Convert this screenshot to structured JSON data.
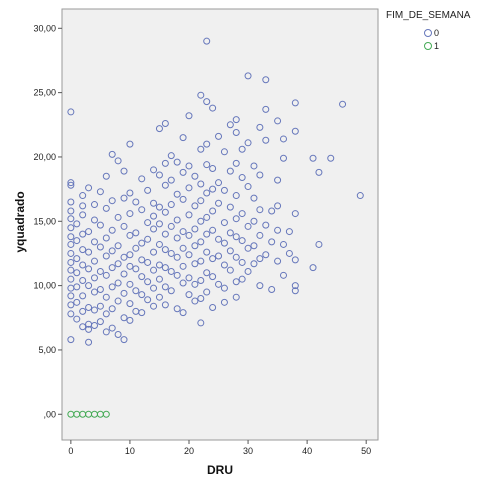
{
  "chart_data": {
    "type": "scatter",
    "xlabel": "DRU",
    "ylabel": "yquadrado",
    "xlim": [
      -1.5,
      52
    ],
    "ylim": [
      -2,
      31.5
    ],
    "xticks": [
      {
        "v": 0,
        "label": "0"
      },
      {
        "v": 10,
        "label": "10"
      },
      {
        "v": 20,
        "label": "20"
      },
      {
        "v": 30,
        "label": "30"
      },
      {
        "v": 40,
        "label": "40"
      },
      {
        "v": 50,
        "label": "50"
      }
    ],
    "yticks": [
      {
        "v": 0,
        "label": ",00"
      },
      {
        "v": 5,
        "label": "5,00"
      },
      {
        "v": 10,
        "label": "10,00"
      },
      {
        "v": 15,
        "label": "15,00"
      },
      {
        "v": 20,
        "label": "20,00"
      },
      {
        "v": 25,
        "label": "25,00"
      },
      {
        "v": 30,
        "label": "30,00"
      }
    ],
    "grid": false,
    "legend": {
      "title": "FIM_DE_SEMANA",
      "position": "top-right"
    },
    "series": [
      {
        "name": "0",
        "color": "#6677bb",
        "points": [
          [
            0,
            23.5
          ],
          [
            0,
            18
          ],
          [
            0,
            17.8
          ],
          [
            0,
            16.5
          ],
          [
            0,
            15.8
          ],
          [
            0,
            15.2
          ],
          [
            0,
            14.5
          ],
          [
            0,
            13.8
          ],
          [
            0,
            13.2
          ],
          [
            0,
            12.5
          ],
          [
            0,
            11.8
          ],
          [
            0,
            11.2
          ],
          [
            0,
            10.5
          ],
          [
            0,
            9.8
          ],
          [
            0,
            9.2
          ],
          [
            0,
            8.5
          ],
          [
            0,
            7.8
          ],
          [
            0,
            5.8
          ],
          [
            1,
            14.8
          ],
          [
            1,
            13.5
          ],
          [
            1,
            12.1
          ],
          [
            1,
            11
          ],
          [
            1,
            9.9
          ],
          [
            1,
            8.7
          ],
          [
            1,
            7.4
          ],
          [
            2,
            17
          ],
          [
            2,
            16.2
          ],
          [
            2,
            15.5
          ],
          [
            2,
            14
          ],
          [
            2,
            12.8
          ],
          [
            2,
            11.6
          ],
          [
            2,
            10.4
          ],
          [
            2,
            9.2
          ],
          [
            2,
            8
          ],
          [
            2,
            6.8
          ],
          [
            3,
            17.6
          ],
          [
            3,
            14.2
          ],
          [
            3,
            12.6
          ],
          [
            3,
            11.3
          ],
          [
            3,
            10
          ],
          [
            3,
            8.3
          ],
          [
            3,
            7
          ],
          [
            3,
            6.6
          ],
          [
            3,
            5.6
          ],
          [
            4,
            16.3
          ],
          [
            4,
            15.1
          ],
          [
            4,
            13.4
          ],
          [
            4,
            11.9
          ],
          [
            4,
            10.6
          ],
          [
            4,
            9.5
          ],
          [
            4,
            8.1
          ],
          [
            4,
            6.9
          ],
          [
            5,
            17.3
          ],
          [
            5,
            14.7
          ],
          [
            5,
            13
          ],
          [
            5,
            11.1
          ],
          [
            5,
            9.7
          ],
          [
            5,
            8.4
          ],
          [
            5,
            7.2
          ],
          [
            6,
            18.5
          ],
          [
            6,
            16
          ],
          [
            6,
            13.7
          ],
          [
            6,
            12.3
          ],
          [
            6,
            10.8
          ],
          [
            6,
            9.1
          ],
          [
            6,
            7.8
          ],
          [
            6,
            6.4
          ],
          [
            7,
            20.2
          ],
          [
            7,
            16.6
          ],
          [
            7,
            14.3
          ],
          [
            7,
            12.7
          ],
          [
            7,
            11.4
          ],
          [
            7,
            9.9
          ],
          [
            7,
            8.2
          ],
          [
            7,
            6.7
          ],
          [
            8,
            19.7
          ],
          [
            8,
            15.3
          ],
          [
            8,
            13.1
          ],
          [
            8,
            11.7
          ],
          [
            8,
            10.2
          ],
          [
            8,
            8.8
          ],
          [
            8,
            6.2
          ],
          [
            9,
            18.9
          ],
          [
            9,
            16.8
          ],
          [
            9,
            14.6
          ],
          [
            9,
            12.2
          ],
          [
            9,
            10.9
          ],
          [
            9,
            9.4
          ],
          [
            9,
            7.5
          ],
          [
            9,
            5.8
          ],
          [
            10,
            21
          ],
          [
            10,
            17.2
          ],
          [
            10,
            15.6
          ],
          [
            10,
            13.9
          ],
          [
            10,
            12.4
          ],
          [
            10,
            11.5
          ],
          [
            10,
            10.1
          ],
          [
            10,
            8.6
          ],
          [
            10,
            7.3
          ],
          [
            11,
            16.5
          ],
          [
            11,
            14.1
          ],
          [
            11,
            12.9
          ],
          [
            11,
            11.3
          ],
          [
            11,
            9.6
          ],
          [
            11,
            8
          ],
          [
            12,
            18.3
          ],
          [
            12,
            15.9
          ],
          [
            12,
            13.3
          ],
          [
            12,
            12
          ],
          [
            12,
            10.7
          ],
          [
            12,
            9.3
          ],
          [
            12,
            7.9
          ],
          [
            13,
            17.4
          ],
          [
            13,
            14.9
          ],
          [
            13,
            13.6
          ],
          [
            13,
            11.8
          ],
          [
            13,
            10.3
          ],
          [
            13,
            8.9
          ],
          [
            14,
            19
          ],
          [
            14,
            16.4
          ],
          [
            14,
            15.4
          ],
          [
            14,
            14.4
          ],
          [
            14,
            12.6
          ],
          [
            14,
            11.2
          ],
          [
            14,
            9.8
          ],
          [
            14,
            8.4
          ],
          [
            15,
            22.2
          ],
          [
            15,
            18.6
          ],
          [
            15,
            16.1
          ],
          [
            15,
            14.8
          ],
          [
            15,
            13.2
          ],
          [
            15,
            11.6
          ],
          [
            15,
            10.5
          ],
          [
            15,
            9.1
          ],
          [
            16,
            22.6
          ],
          [
            16,
            19.5
          ],
          [
            16,
            17.8
          ],
          [
            16,
            15.7
          ],
          [
            16,
            14
          ],
          [
            16,
            12.8
          ],
          [
            16,
            11.4
          ],
          [
            16,
            9.9
          ],
          [
            16,
            8.5
          ],
          [
            17,
            20.1
          ],
          [
            17,
            18.2
          ],
          [
            17,
            16.3
          ],
          [
            17,
            14.6
          ],
          [
            17,
            12.5
          ],
          [
            17,
            11.1
          ],
          [
            17,
            9.6
          ],
          [
            18,
            19.6
          ],
          [
            18,
            17.1
          ],
          [
            18,
            15.1
          ],
          [
            18,
            13.7
          ],
          [
            18,
            12.2
          ],
          [
            18,
            10.8
          ],
          [
            18,
            8.2
          ],
          [
            19,
            21.5
          ],
          [
            19,
            18.8
          ],
          [
            19,
            16.7
          ],
          [
            19,
            14.2
          ],
          [
            19,
            12.9
          ],
          [
            19,
            11.5
          ],
          [
            19,
            10.2
          ],
          [
            19,
            7.9
          ],
          [
            20,
            23.2
          ],
          [
            20,
            19.3
          ],
          [
            20,
            17.6
          ],
          [
            20,
            15.5
          ],
          [
            20,
            13.9
          ],
          [
            20,
            12.4
          ],
          [
            20,
            10.6
          ],
          [
            20,
            9.3
          ],
          [
            21,
            18.5
          ],
          [
            21,
            16.2
          ],
          [
            21,
            14.4
          ],
          [
            21,
            13.1
          ],
          [
            21,
            11.7
          ],
          [
            21,
            10.1
          ],
          [
            21,
            8.8
          ],
          [
            22,
            24.8
          ],
          [
            22,
            20.6
          ],
          [
            22,
            17.9
          ],
          [
            22,
            16.6
          ],
          [
            22,
            15
          ],
          [
            22,
            13.4
          ],
          [
            22,
            11.9
          ],
          [
            22,
            10.4
          ],
          [
            22,
            9
          ],
          [
            22,
            7.1
          ],
          [
            23,
            29
          ],
          [
            23,
            24.3
          ],
          [
            23,
            21
          ],
          [
            23,
            19.4
          ],
          [
            23,
            17.2
          ],
          [
            23,
            15.3
          ],
          [
            23,
            14
          ],
          [
            23,
            12.6
          ],
          [
            23,
            11
          ],
          [
            23,
            9.5
          ],
          [
            24,
            23.8
          ],
          [
            24,
            19.1
          ],
          [
            24,
            17.5
          ],
          [
            24,
            15.8
          ],
          [
            24,
            14.3
          ],
          [
            24,
            12.1
          ],
          [
            24,
            10.7
          ],
          [
            24,
            8.3
          ],
          [
            25,
            21.6
          ],
          [
            25,
            18
          ],
          [
            25,
            16.4
          ],
          [
            25,
            13.6
          ],
          [
            25,
            12.3
          ],
          [
            25,
            10.1
          ],
          [
            26,
            20.4
          ],
          [
            26,
            17.4
          ],
          [
            26,
            14.9
          ],
          [
            26,
            13.3
          ],
          [
            26,
            11.6
          ],
          [
            26,
            9.8
          ],
          [
            26,
            8.7
          ],
          [
            27,
            22.5
          ],
          [
            27,
            18.9
          ],
          [
            27,
            16.1
          ],
          [
            27,
            14.1
          ],
          [
            27,
            12.7
          ],
          [
            27,
            11.2
          ],
          [
            28,
            22.9
          ],
          [
            28,
            21.9
          ],
          [
            28,
            19.5
          ],
          [
            28,
            17
          ],
          [
            28,
            15.2
          ],
          [
            28,
            13.8
          ],
          [
            28,
            12.2
          ],
          [
            28,
            10.3
          ],
          [
            28,
            9.1
          ],
          [
            29,
            20.6
          ],
          [
            29,
            18.4
          ],
          [
            29,
            15.6
          ],
          [
            29,
            13.5
          ],
          [
            29,
            11.8
          ],
          [
            29,
            10.5
          ],
          [
            30,
            26.3
          ],
          [
            30,
            21.1
          ],
          [
            30,
            17.7
          ],
          [
            30,
            14.6
          ],
          [
            30,
            12.9
          ],
          [
            30,
            11.1
          ],
          [
            31,
            19.3
          ],
          [
            31,
            16.8
          ],
          [
            31,
            15
          ],
          [
            31,
            13.1
          ],
          [
            31,
            11.7
          ],
          [
            32,
            22.3
          ],
          [
            32,
            18.6
          ],
          [
            32,
            15.9
          ],
          [
            32,
            13.9
          ],
          [
            32,
            12.1
          ],
          [
            32,
            10
          ],
          [
            33,
            26
          ],
          [
            33,
            23.7
          ],
          [
            33,
            21.3
          ],
          [
            33,
            14.7
          ],
          [
            33,
            12.4
          ],
          [
            34,
            15.8
          ],
          [
            34,
            13.4
          ],
          [
            34,
            9.7
          ],
          [
            35,
            22.8
          ],
          [
            35,
            18.2
          ],
          [
            35,
            16.2
          ],
          [
            35,
            14.3
          ],
          [
            35,
            11.9
          ],
          [
            36,
            21.4
          ],
          [
            36,
            19.9
          ],
          [
            36,
            13.2
          ],
          [
            36,
            10.8
          ],
          [
            37,
            14.2
          ],
          [
            37,
            12.5
          ],
          [
            38,
            24.2
          ],
          [
            38,
            22
          ],
          [
            38,
            15.6
          ],
          [
            38,
            12
          ],
          [
            38,
            10
          ],
          [
            38,
            9.6
          ],
          [
            41,
            19.9
          ],
          [
            41,
            11.4
          ],
          [
            42,
            18.8
          ],
          [
            42,
            13.2
          ],
          [
            44,
            19.9
          ],
          [
            46,
            24.1
          ],
          [
            49,
            17
          ]
        ]
      },
      {
        "name": "1",
        "color": "#44aa55",
        "points": [
          [
            0,
            0
          ],
          [
            1,
            0
          ],
          [
            2,
            0
          ],
          [
            3,
            0
          ],
          [
            4,
            0
          ],
          [
            5,
            0
          ],
          [
            6,
            0
          ]
        ]
      }
    ]
  }
}
